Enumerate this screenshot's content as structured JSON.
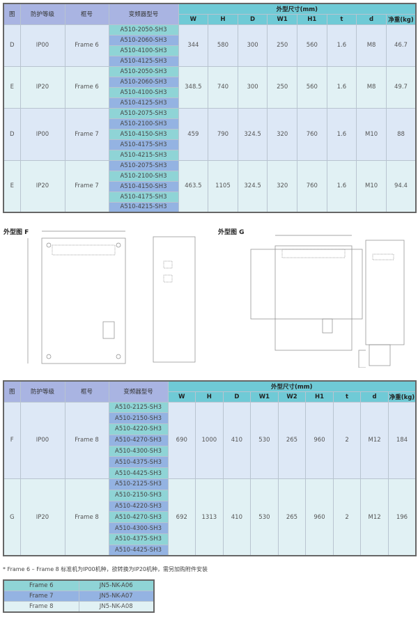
{
  "headers": {
    "fig": "图",
    "ip": "防护等级",
    "frame": "框号",
    "model": "变频器型号",
    "dims": "外型尺寸(mm)",
    "weight": "净重(kg)"
  },
  "table1": {
    "dim_cols": [
      "W",
      "H",
      "D",
      "W1",
      "H1",
      "t",
      "d"
    ],
    "groups": [
      {
        "fig": "D",
        "ip": "IP00",
        "frame": "Frame 6",
        "models": [
          "A510-2050-SH3",
          "A510-2060-SH3",
          "A510-4100-SH3",
          "A510-4125-SH3"
        ],
        "dims": [
          "344",
          "580",
          "300",
          "250",
          "560",
          "1.6",
          "M8"
        ],
        "weight": "46.7"
      },
      {
        "fig": "E",
        "ip": "IP20",
        "frame": "Frame 6",
        "models": [
          "A510-2050-SH3",
          "A510-2060-SH3",
          "A510-4100-SH3",
          "A510-4125-SH3"
        ],
        "dims": [
          "348.5",
          "740",
          "300",
          "250",
          "560",
          "1.6",
          "M8"
        ],
        "weight": "49.7"
      },
      {
        "fig": "D",
        "ip": "IP00",
        "frame": "Frame 7",
        "models": [
          "A510-2075-SH3",
          "A510-2100-SH3",
          "A510-4150-SH3",
          "A510-4175-SH3",
          "A510-4215-SH3"
        ],
        "dims": [
          "459",
          "790",
          "324.5",
          "320",
          "760",
          "1.6",
          "M10"
        ],
        "weight": "88"
      },
      {
        "fig": "E",
        "ip": "IP20",
        "frame": "Frame 7",
        "models": [
          "A510-2075-SH3",
          "A510-2100-SH3",
          "A510-4150-SH3",
          "A510-4175-SH3",
          "A510-4215-SH3"
        ],
        "dims": [
          "463.5",
          "1105",
          "324.5",
          "320",
          "760",
          "1.6",
          "M10"
        ],
        "weight": "94.4"
      }
    ]
  },
  "drawings": {
    "f_label": "外型图 F",
    "g_label": "外型图 G"
  },
  "table2": {
    "dim_cols": [
      "W",
      "H",
      "D",
      "W1",
      "W2",
      "H1",
      "t",
      "d"
    ],
    "groups": [
      {
        "fig": "F",
        "ip": "IP00",
        "frame": "Frame 8",
        "models": [
          "A510-2125-SH3",
          "A510-2150-SH3",
          "A510-4220-SH3",
          "A510-4270-SH3",
          "A510-4300-SH3",
          "A510-4375-SH3",
          "A510-4425-SH3"
        ],
        "dims": [
          "690",
          "1000",
          "410",
          "530",
          "265",
          "960",
          "2",
          "M12"
        ],
        "weight": "184"
      },
      {
        "fig": "G",
        "ip": "IP20",
        "frame": "Frame 8",
        "models": [
          "A510-2125-SH3",
          "A510-2150-SH3",
          "A510-4220-SH3",
          "A510-4270-SH3",
          "A510-4300-SH3",
          "A510-4375-SH3",
          "A510-4425-SH3"
        ],
        "dims": [
          "692",
          "1313",
          "410",
          "530",
          "265",
          "960",
          "2",
          "M12"
        ],
        "weight": "196"
      }
    ]
  },
  "note": "* Frame 6 – Frame 8 标准机为IP00机种，欲转换为IP20机种，需另加购附件安装",
  "accessories": [
    {
      "frame": "Frame 6",
      "kit": "JN5-NK-A06"
    },
    {
      "frame": "Frame 7",
      "kit": "JN5-NK-A07"
    },
    {
      "frame": "Frame 8",
      "kit": "JN5-NK-A08"
    }
  ]
}
